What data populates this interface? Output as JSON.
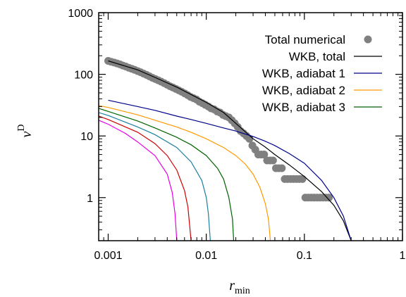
{
  "chart_data": {
    "type": "line",
    "title": "",
    "xlabel": "r",
    "xlabel_sub": "min",
    "ylabel": "ν",
    "ylabel_sup": "D",
    "xscale": "log",
    "yscale": "log",
    "xlim": [
      0.0008,
      1
    ],
    "ylim": [
      0.2,
      1000
    ],
    "xticks": [
      {
        "value": 0.001,
        "label": "0.001"
      },
      {
        "value": 0.01,
        "label": "0.01"
      },
      {
        "value": 0.1,
        "label": "0.1"
      },
      {
        "value": 1,
        "label": "1"
      }
    ],
    "yticks": [
      {
        "value": 1,
        "label": "1"
      },
      {
        "value": 10,
        "label": "10"
      },
      {
        "value": 100,
        "label": "100"
      },
      {
        "value": 1000,
        "label": "1000"
      }
    ],
    "grid": false,
    "legend": "top-right",
    "series": [
      {
        "name": "Total numerical",
        "kind": "scatter",
        "color": "#808080",
        "x": [
          0.001,
          0.00107,
          0.00115,
          0.00123,
          0.00132,
          0.00141,
          0.00151,
          0.00162,
          0.00174,
          0.00186,
          0.002,
          0.00214,
          0.00229,
          0.00246,
          0.00263,
          0.00282,
          0.00302,
          0.00324,
          0.00347,
          0.00372,
          0.00398,
          0.00427,
          0.00457,
          0.0049,
          0.00525,
          0.00562,
          0.00603,
          0.00646,
          0.00692,
          0.00741,
          0.00794,
          0.00851,
          0.00912,
          0.00977,
          0.0105,
          0.0112,
          0.012,
          0.0129,
          0.0138,
          0.0148,
          0.0158,
          0.017,
          0.0182,
          0.0195,
          0.0209,
          0.0224,
          0.024,
          0.0257,
          0.0275,
          0.0295,
          0.0316,
          0.0339,
          0.0363,
          0.0389,
          0.0417,
          0.0447,
          0.0479,
          0.0513,
          0.055,
          0.0589,
          0.0631,
          0.0676,
          0.0724,
          0.0776,
          0.0832,
          0.0891,
          0.0955,
          0.1023,
          0.1096,
          0.1175,
          0.1259,
          0.1349,
          0.1445,
          0.1549,
          0.166,
          0.1778
        ],
        "y": [
          165,
          160,
          155,
          150,
          145,
          139,
          134,
          128,
          123,
          118,
          113,
          108,
          103,
          98,
          93,
          88,
          84,
          80,
          76,
          72,
          68,
          64,
          61,
          58,
          55,
          52,
          49,
          46,
          43,
          41,
          39,
          36,
          34,
          32,
          30,
          28,
          27,
          25,
          24,
          22,
          21,
          20,
          18,
          16,
          14,
          12,
          11,
          10,
          9,
          7,
          6,
          5,
          5,
          5,
          4,
          4,
          4,
          3,
          3,
          3,
          2,
          2,
          2,
          2,
          2,
          2,
          2,
          1,
          1,
          1,
          1,
          1,
          1,
          1,
          1,
          1
        ]
      },
      {
        "name": "WKB, total",
        "kind": "line",
        "color": "#000000",
        "x": [
          0.001,
          0.002,
          0.003,
          0.005,
          0.007,
          0.01,
          0.015,
          0.02,
          0.03,
          0.04,
          0.05,
          0.07,
          0.1,
          0.15,
          0.2,
          0.25,
          0.3
        ],
        "y": [
          165,
          118,
          89,
          62,
          47,
          35,
          24,
          16,
          9,
          6.6,
          5.0,
          3.4,
          2.2,
          1.25,
          0.75,
          0.42,
          0.2
        ]
      },
      {
        "name": "WKB, adiabat 1",
        "kind": "line",
        "color": "#00008b",
        "x": [
          0.001,
          0.002,
          0.003,
          0.005,
          0.007,
          0.01,
          0.015,
          0.02,
          0.03,
          0.04,
          0.05,
          0.07,
          0.1,
          0.15,
          0.2,
          0.25,
          0.3
        ],
        "y": [
          38,
          30,
          26,
          21,
          18.5,
          16,
          13.5,
          12,
          9.8,
          8.2,
          7.0,
          5.2,
          3.6,
          1.9,
          1.0,
          0.5,
          0.2
        ]
      },
      {
        "name": "WKB, adiabat 2",
        "kind": "line",
        "color": "#ff9900",
        "x": [
          0.0008,
          0.001,
          0.002,
          0.003,
          0.005,
          0.007,
          0.01,
          0.015,
          0.02,
          0.025,
          0.03,
          0.035,
          0.04,
          0.043,
          0.045
        ],
        "y": [
          31,
          29,
          22,
          18,
          14,
          11.5,
          9.0,
          6.5,
          4.8,
          3.5,
          2.4,
          1.5,
          0.8,
          0.45,
          0.2
        ]
      },
      {
        "name": "WKB, adiabat 3",
        "kind": "line",
        "color": "#006400",
        "x": [
          0.0008,
          0.001,
          0.002,
          0.003,
          0.005,
          0.007,
          0.01,
          0.013,
          0.015,
          0.017,
          0.0185,
          0.019
        ],
        "y": [
          28,
          25,
          17.5,
          13.5,
          9.5,
          7.2,
          4.8,
          3.0,
          2.0,
          1.0,
          0.45,
          0.2
        ]
      },
      {
        "name": "",
        "kind": "line",
        "color": "#1a7fa0",
        "x": [
          0.0008,
          0.001,
          0.002,
          0.003,
          0.005,
          0.007,
          0.009,
          0.01,
          0.0105,
          0.011
        ],
        "y": [
          24,
          21.5,
          14,
          10.5,
          6.5,
          3.8,
          1.9,
          1.0,
          0.55,
          0.2
        ]
      },
      {
        "name": "",
        "kind": "line",
        "color": "#cc0000",
        "x": [
          0.0008,
          0.001,
          0.002,
          0.003,
          0.004,
          0.005,
          0.006,
          0.0065,
          0.007
        ],
        "y": [
          21,
          18.5,
          11.5,
          7.5,
          4.8,
          2.8,
          1.3,
          0.7,
          0.2
        ]
      },
      {
        "name": "",
        "kind": "line",
        "color": "#e600e6",
        "x": [
          0.0008,
          0.001,
          0.0015,
          0.002,
          0.003,
          0.004,
          0.0045,
          0.0048,
          0.005
        ],
        "y": [
          18,
          15.5,
          11,
          8.0,
          4.8,
          2.4,
          1.2,
          0.55,
          0.2
        ]
      }
    ]
  }
}
